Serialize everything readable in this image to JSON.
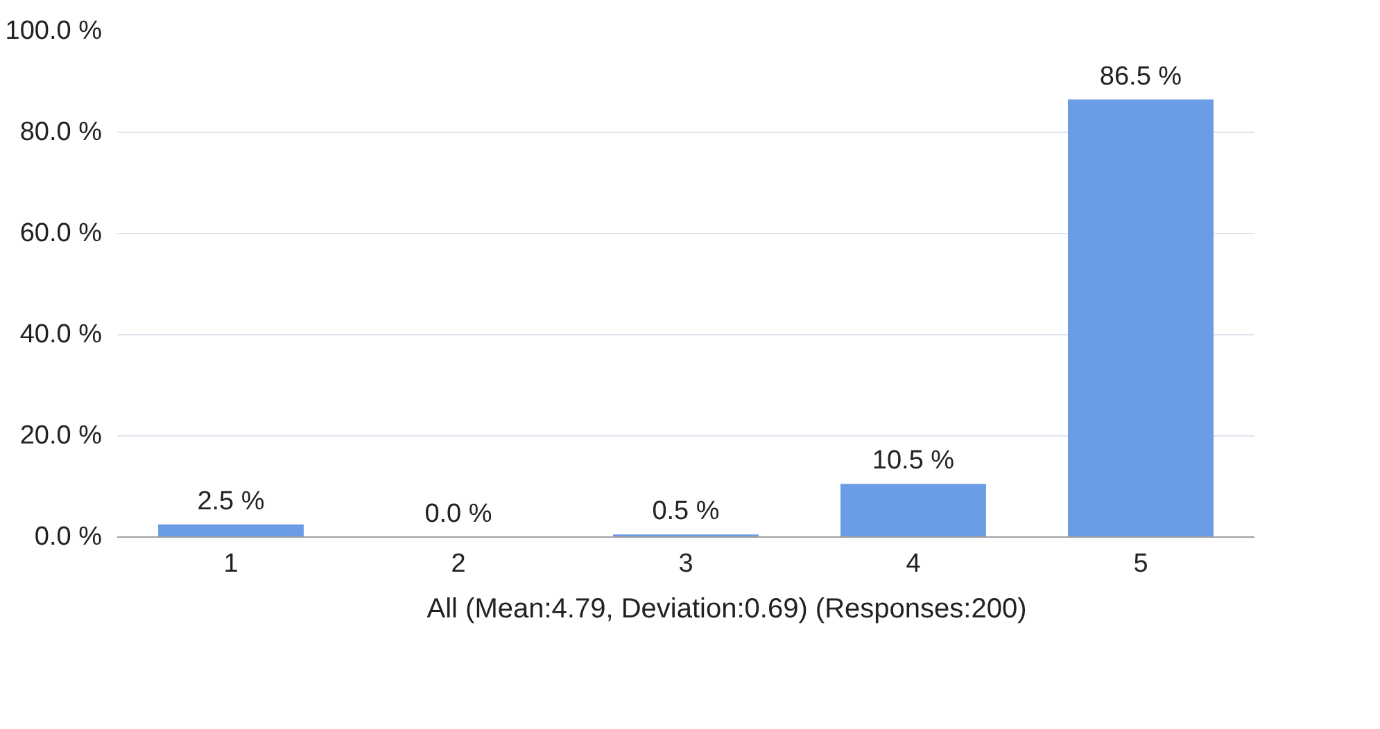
{
  "chart_data": {
    "type": "bar",
    "categories": [
      "1",
      "2",
      "3",
      "4",
      "5"
    ],
    "series": [
      {
        "name": "All (Mean:4.79, Deviation:0.69) (Responses:200)",
        "color": "#6a9de6",
        "values": [
          2.5,
          0.0,
          0.5,
          10.5,
          86.5
        ],
        "value_labels": [
          "2.5 %",
          "0.0 %",
          "0.5 %",
          "10.5 %",
          "86.5 %"
        ]
      }
    ],
    "ylim": [
      0,
      100
    ],
    "yticks": [
      {
        "value": 0,
        "label": "0.0 %"
      },
      {
        "value": 20,
        "label": "20.0 %"
      },
      {
        "value": 40,
        "label": "40.0 %"
      },
      {
        "value": 60,
        "label": "60.0 %"
      },
      {
        "value": 80,
        "label": "80.0 %"
      },
      {
        "value": 100,
        "label": "100.0 %"
      }
    ],
    "grid": "y",
    "legend": "bottom"
  }
}
